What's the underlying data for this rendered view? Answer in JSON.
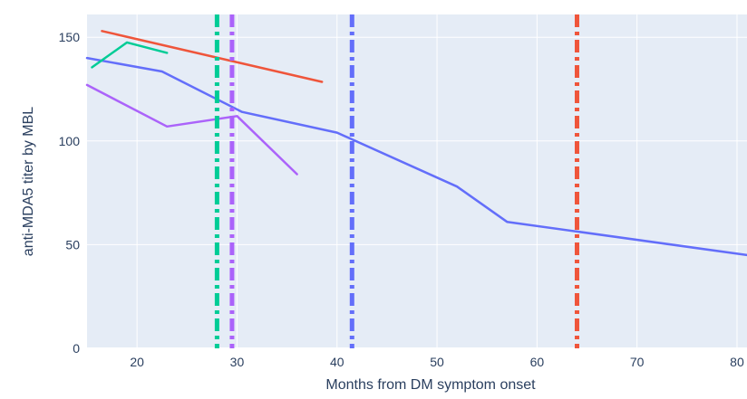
{
  "chart_data": {
    "type": "line",
    "xlabel": "Months from DM symptom onset",
    "ylabel": "anti-MDA5 titer by MBL",
    "xlim": [
      15,
      81
    ],
    "ylim": [
      0,
      161
    ],
    "xticks": [
      20,
      30,
      40,
      50,
      60,
      70,
      80
    ],
    "yticks": [
      0,
      50,
      100,
      150
    ],
    "grid": true,
    "legend": "none",
    "plot_bgcolor": "#e5ecf6",
    "grid_color": "#ffffff",
    "series": [
      {
        "color": "#636efa",
        "points": [
          [
            15,
            140
          ],
          [
            22.5,
            133.5
          ],
          [
            30.5,
            114
          ],
          [
            40,
            104
          ],
          [
            52,
            78
          ],
          [
            57,
            61
          ],
          [
            81,
            45
          ]
        ]
      },
      {
        "color": "#ef553b",
        "points": [
          [
            16.5,
            153
          ],
          [
            38.5,
            128.5
          ]
        ]
      },
      {
        "color": "#ab63fa",
        "points": [
          [
            15,
            127
          ],
          [
            23,
            107
          ],
          [
            30,
            112
          ],
          [
            36,
            84
          ]
        ]
      },
      {
        "color": "#00cc96",
        "points": [
          [
            15.5,
            135.5
          ],
          [
            19,
            147.5
          ],
          [
            23,
            142.5
          ]
        ]
      }
    ],
    "vlines": [
      {
        "x": 28,
        "color": "#00cc96"
      },
      {
        "x": 29.5,
        "color": "#ab63fa"
      },
      {
        "x": 41.5,
        "color": "#636efa"
      },
      {
        "x": 64,
        "color": "#ef553b"
      }
    ]
  }
}
